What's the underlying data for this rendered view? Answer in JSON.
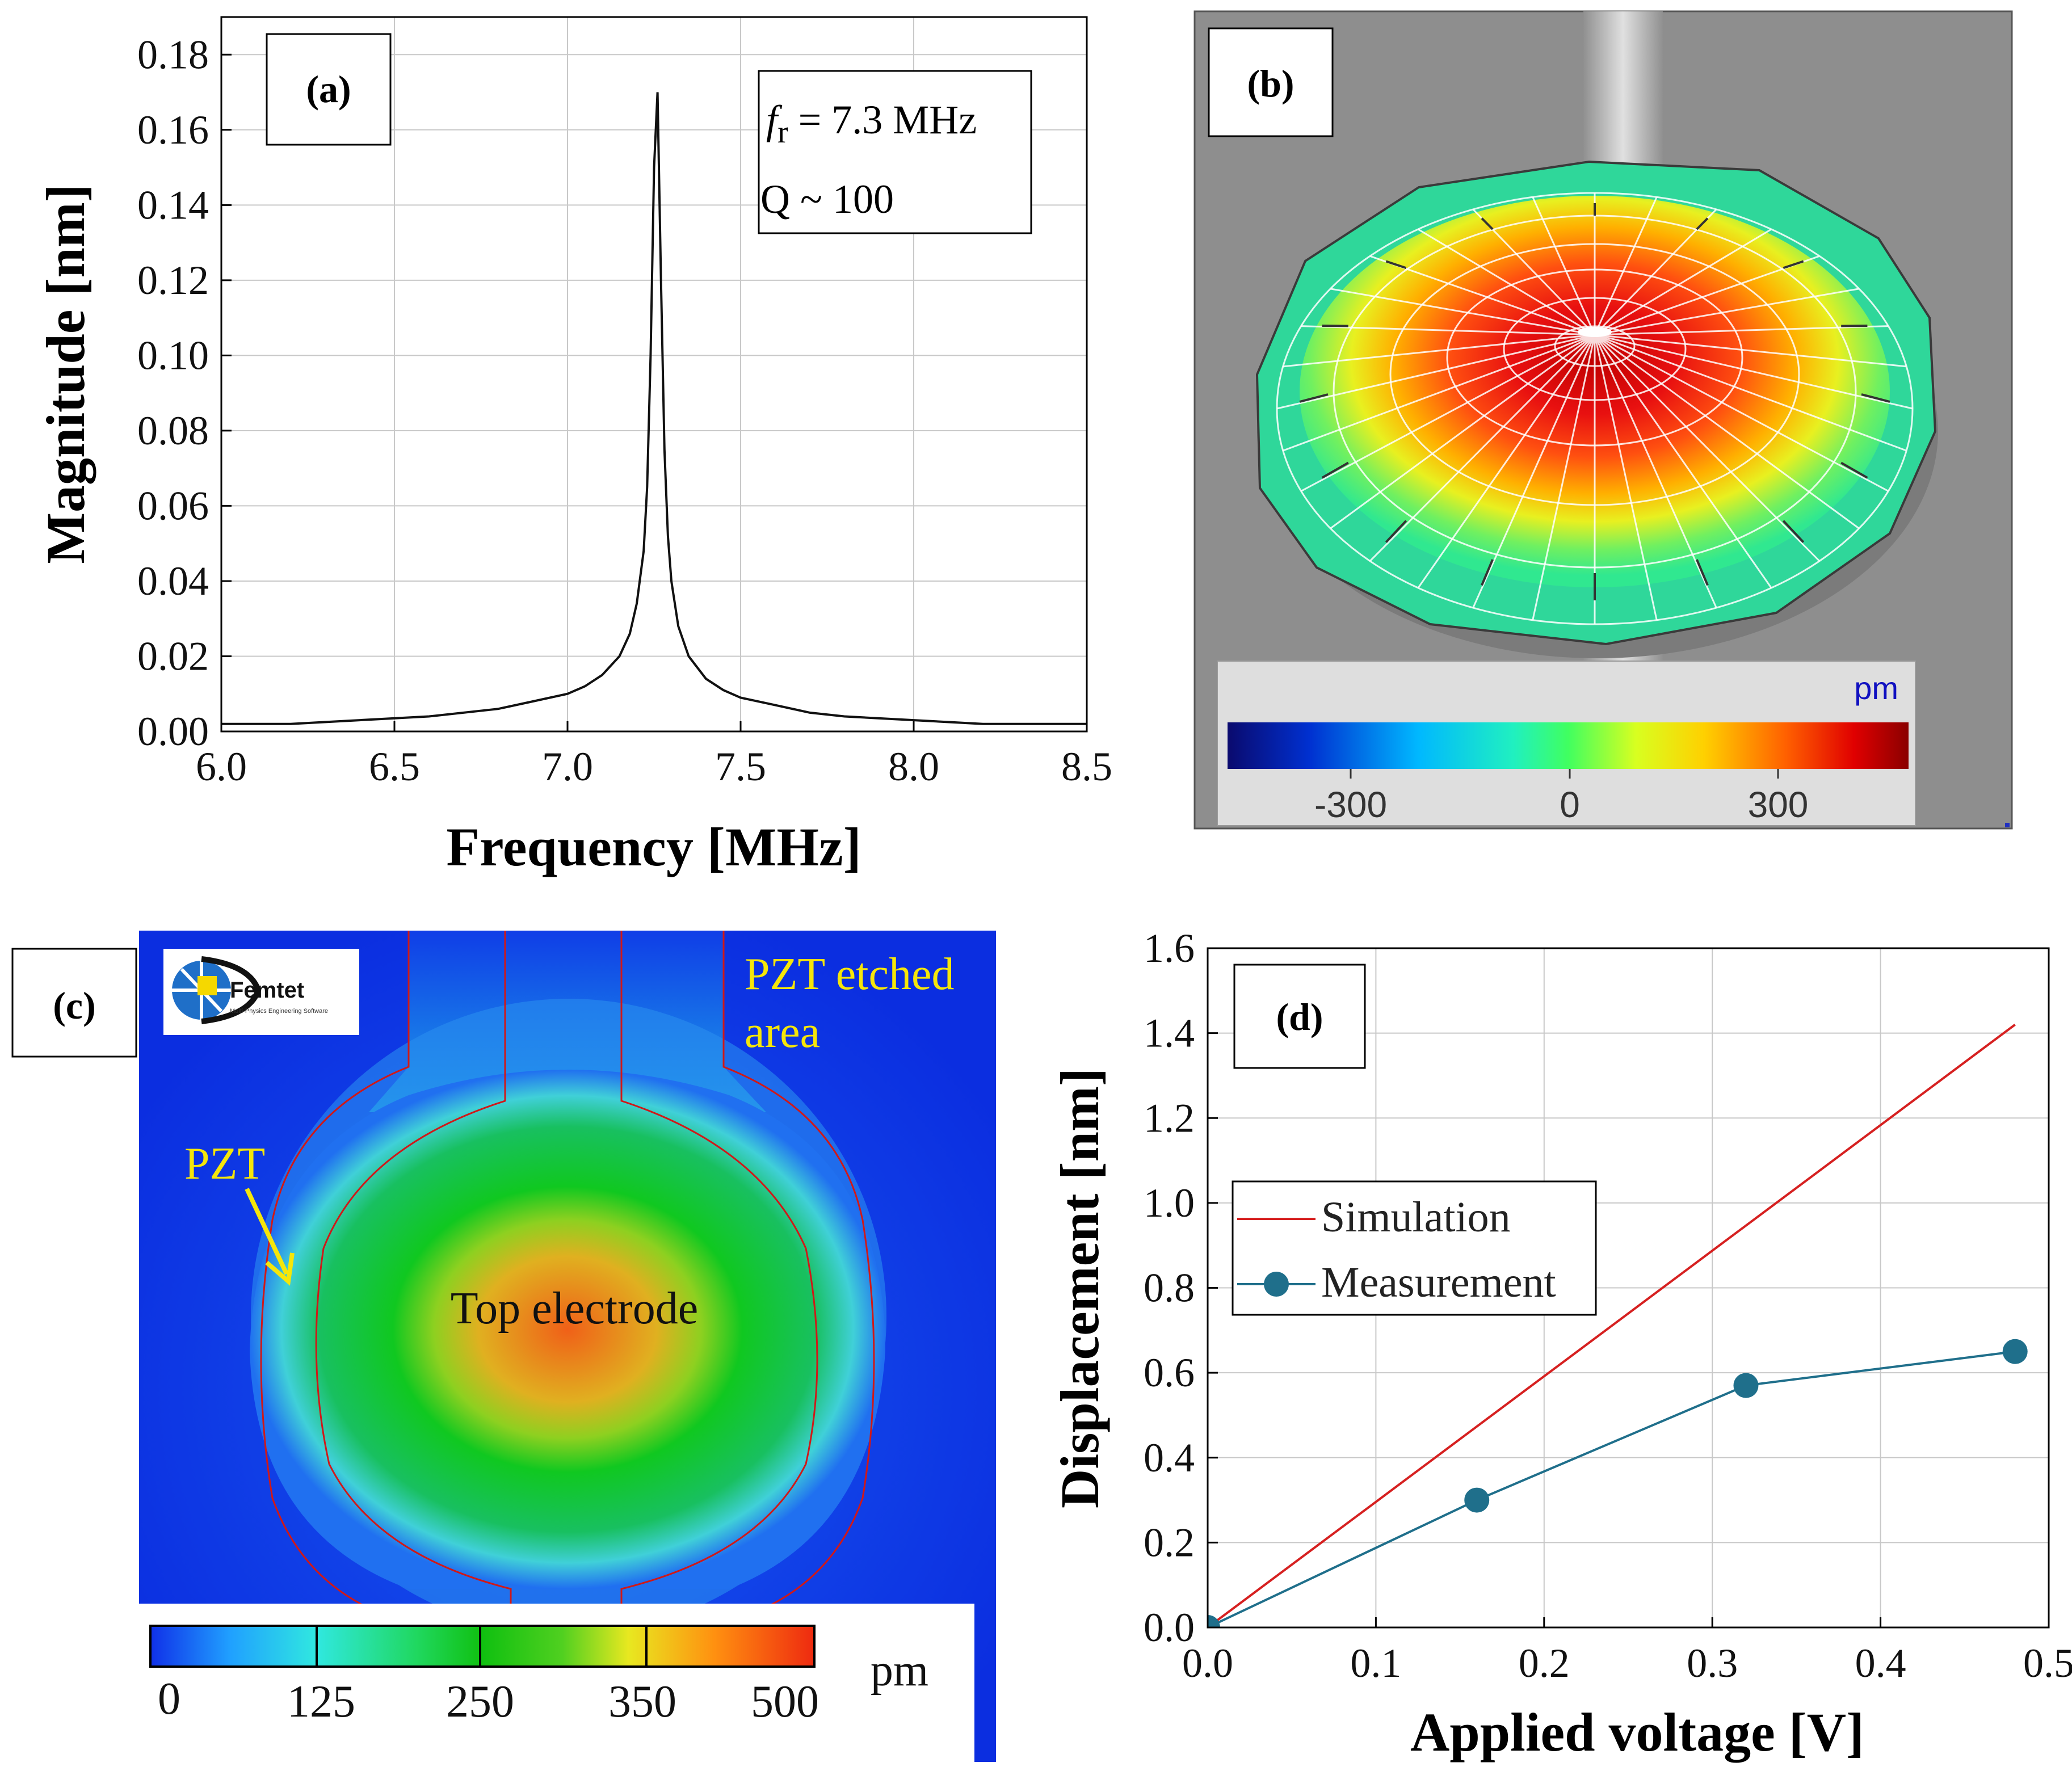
{
  "panels": {
    "a": {
      "label": "(a)",
      "annotation_fr": "f",
      "annotation_fr_sub": "r",
      "annotation_fr_value": " = 7.3 MHz",
      "annotation_q": "Q ~ 100"
    },
    "b": {
      "label": "(b)",
      "unit": "pm",
      "ticks": [
        "-300",
        "0",
        "300"
      ]
    },
    "c": {
      "label": "(c)",
      "logo_text": "Femtet",
      "logo_subtext": "Multi-Physics Engineering Software",
      "etched_label_line1": "PZT etched",
      "etched_label_line2": "area",
      "pzt_label": "PZT",
      "electrode_label": "Top electrode",
      "unit": "pm",
      "ticks": [
        "0",
        "125",
        "250",
        "350",
        "500"
      ]
    },
    "d": {
      "label": "(d)"
    }
  },
  "colors": {
    "simulation": "#d62020",
    "measurement": "#1f6f8b",
    "annotation_yellow": "#f5e60a"
  },
  "chart_data": [
    {
      "panel": "a",
      "type": "line",
      "xlabel": "Frequency [MHz]",
      "ylabel": "Magnitude [nm]",
      "xlim": [
        6.0,
        8.5
      ],
      "ylim": [
        0.0,
        0.19
      ],
      "xticks": [
        "6.0",
        "6.5",
        "7.0",
        "7.5",
        "8.0",
        "8.5"
      ],
      "yticks": [
        "0.00",
        "0.02",
        "0.04",
        "0.06",
        "0.08",
        "0.10",
        "0.12",
        "0.14",
        "0.16",
        "0.18"
      ],
      "grid": true,
      "series": [
        {
          "x": [
            6.0,
            6.2,
            6.4,
            6.6,
            6.8,
            6.9,
            7.0,
            7.05,
            7.1,
            7.15,
            7.18,
            7.2,
            7.22,
            7.23,
            7.24,
            7.25,
            7.26,
            7.27,
            7.28,
            7.29,
            7.3,
            7.32,
            7.35,
            7.4,
            7.45,
            7.5,
            7.6,
            7.7,
            7.8,
            8.0,
            8.2,
            8.5
          ],
          "y": [
            0.002,
            0.002,
            0.003,
            0.004,
            0.006,
            0.008,
            0.01,
            0.012,
            0.015,
            0.02,
            0.026,
            0.034,
            0.048,
            0.065,
            0.1,
            0.15,
            0.17,
            0.12,
            0.075,
            0.052,
            0.04,
            0.028,
            0.02,
            0.014,
            0.011,
            0.009,
            0.007,
            0.005,
            0.004,
            0.003,
            0.002,
            0.002
          ]
        }
      ]
    },
    {
      "panel": "d",
      "type": "line",
      "xlabel": "Applied voltage [V]",
      "ylabel": "Displacement [nm]",
      "xlim": [
        0.0,
        0.5
      ],
      "ylim": [
        0.0,
        1.6
      ],
      "xticks": [
        "0.0",
        "0.1",
        "0.2",
        "0.3",
        "0.4",
        "0.5"
      ],
      "yticks": [
        "0.0",
        "0.2",
        "0.4",
        "0.6",
        "0.8",
        "1.0",
        "1.2",
        "1.4",
        "1.6"
      ],
      "grid": true,
      "legend_position": "upper-left",
      "series": [
        {
          "name": "Simulation",
          "x": [
            0.0,
            0.48
          ],
          "y": [
            0.0,
            1.42
          ]
        },
        {
          "name": "Measurement",
          "x": [
            0.0,
            0.16,
            0.32,
            0.48
          ],
          "y": [
            0.0,
            0.3,
            0.57,
            0.65
          ]
        }
      ]
    }
  ]
}
